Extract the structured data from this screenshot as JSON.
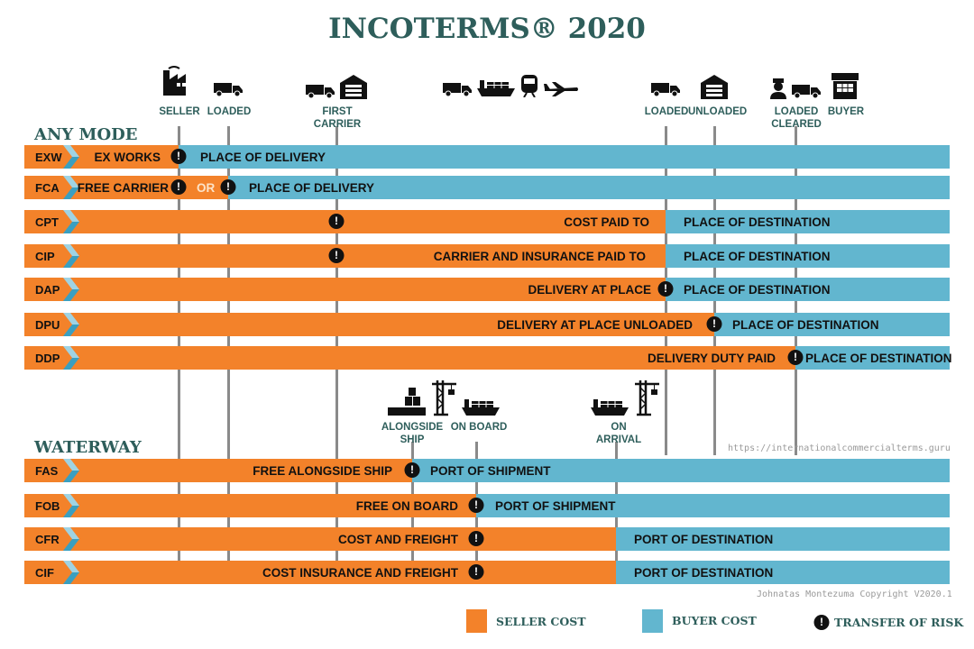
{
  "title": "INCOTERMS® 2020",
  "sections": {
    "any_mode": "ANY MODE",
    "waterway": "WATERWAY"
  },
  "colors": {
    "seller_cost": "#F3822A",
    "buyer_cost": "#62B6CF",
    "heading": "#2E5E5B"
  },
  "milestones_top": [
    {
      "label": "SELLER",
      "icon": "factory-icon"
    },
    {
      "label": "LOADED",
      "icon": "truck-icon"
    },
    {
      "label": "FIRST CARRIER",
      "icon": "truck-warehouse-icon"
    },
    {
      "label": "",
      "icon": "truck-ship-train-plane-icon"
    },
    {
      "label": "LOADED",
      "icon": "truck-icon"
    },
    {
      "label": "UNLOADED",
      "icon": "warehouse-icon"
    },
    {
      "label": "LOADED CLEARED",
      "icon": "customs-officer-truck-icon"
    },
    {
      "label": "BUYER",
      "icon": "buyer-store-icon"
    }
  ],
  "milestones_water": [
    {
      "label": "ALONGSIDE SHIP",
      "icon": "cargo-dock-crane-icon"
    },
    {
      "label": "ON BOARD",
      "icon": "ship-icon"
    },
    {
      "label": "ON ARRIVAL",
      "icon": "ship-crane-icon"
    }
  ],
  "terms": [
    {
      "code": "EXW",
      "seller_text": "EX WORKS",
      "buyer_text": "PLACE OF DELIVERY"
    },
    {
      "code": "FCA",
      "seller_text": "FREE CARRIER",
      "or_text": "OR",
      "buyer_text": "PLACE OF DELIVERY"
    },
    {
      "code": "CPT",
      "seller_text": "COST PAID TO",
      "buyer_text": "PLACE OF DESTINATION"
    },
    {
      "code": "CIP",
      "seller_text": "CARRIER AND INSURANCE PAID TO",
      "buyer_text": "PLACE OF DESTINATION"
    },
    {
      "code": "DAP",
      "seller_text": "DELIVERY AT PLACE",
      "buyer_text": "PLACE OF DESTINATION"
    },
    {
      "code": "DPU",
      "seller_text": "DELIVERY AT PLACE UNLOADED",
      "buyer_text": "PLACE OF DESTINATION"
    },
    {
      "code": "DDP",
      "seller_text": "DELIVERY DUTY PAID",
      "buyer_text": "PLACE OF DESTINATION"
    },
    {
      "code": "FAS",
      "seller_text": "FREE ALONGSIDE SHIP",
      "buyer_text": "PORT OF SHIPMENT"
    },
    {
      "code": "FOB",
      "seller_text": "FREE ON BOARD",
      "buyer_text": "PORT OF SHIPMENT"
    },
    {
      "code": "CFR",
      "seller_text": "COST AND FREIGHT",
      "buyer_text": "PORT OF DESTINATION"
    },
    {
      "code": "CIF",
      "seller_text": "COST INSURANCE AND FREIGHT",
      "buyer_text": "PORT OF DESTINATION"
    }
  ],
  "url": "https://internationalcommercialterms.guru",
  "copyright": "Johnatas Montezuma Copyright V2020.1",
  "legend": {
    "seller": "SELLER COST",
    "buyer": "BUYER COST",
    "risk": "TRANSFER OF RISK",
    "risk_glyph": "!"
  }
}
